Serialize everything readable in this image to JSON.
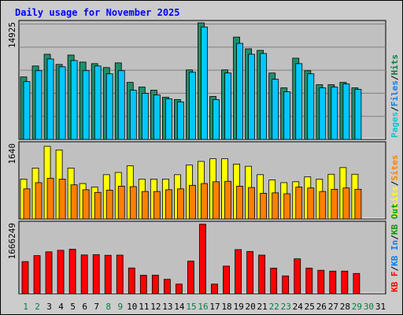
{
  "title": "Daily usage for November 2025",
  "colors": {
    "background": "#cccccc",
    "panel": "#c0c0c0",
    "pages": "#00cccc",
    "files": "#0080ff",
    "hits": "#008040",
    "pages_bar": "#00c8ff",
    "hits_bar": "#1f8f6a",
    "visits": "#ffff00",
    "sites": "#ff8000",
    "kbf": "#ff0000",
    "kbin": "#0080ff",
    "kbout": "#00a000",
    "title": "#0000ff",
    "weekend_label": "#008040"
  },
  "chart_data": [
    {
      "type": "bar",
      "panel": "top",
      "ymax_label": "14925",
      "ymax": 14925,
      "grid": true,
      "legend_position": "right-vertical",
      "legend": [
        {
          "label": "Pages",
          "color": "#00cccc"
        },
        {
          "sep": "/",
          "color": "#000000"
        },
        {
          "label": "Files",
          "color": "#0080ff"
        },
        {
          "sep": "/",
          "color": "#000000"
        },
        {
          "label": "Hits",
          "color": "#008040"
        }
      ],
      "series": [
        {
          "name": "Hits",
          "values": [
            8000,
            9400,
            10900,
            9600,
            10800,
            9900,
            9700,
            9200,
            9800,
            7300,
            6700,
            6300,
            5400,
            5100,
            8900,
            14925,
            5500,
            8900,
            13100,
            11600,
            11400,
            8500,
            6600,
            10400,
            8800,
            7000,
            7000,
            7300,
            6600
          ]
        },
        {
          "name": "Pages",
          "values": [
            7400,
            8800,
            10300,
            9300,
            10100,
            8800,
            9400,
            8400,
            8800,
            6300,
            5900,
            5700,
            5200,
            4800,
            8600,
            14400,
            5100,
            8500,
            12300,
            10900,
            11000,
            7700,
            6100,
            9700,
            8400,
            6600,
            6700,
            7100,
            6400
          ]
        }
      ]
    },
    {
      "type": "bar",
      "panel": "middle",
      "ymax_label": "1640",
      "ymax": 1640,
      "legend": [
        {
          "label": "Visits",
          "color": "#ffff00"
        },
        {
          "sep": "/",
          "color": "#000000"
        },
        {
          "label": "Sites",
          "color": "#ff8000"
        }
      ],
      "series": [
        {
          "name": "Visits",
          "values": [
            900,
            1150,
            1640,
            1560,
            1150,
            800,
            720,
            1000,
            1050,
            1200,
            900,
            900,
            900,
            1000,
            1220,
            1300,
            1360,
            1360,
            1240,
            1190,
            1000,
            880,
            820,
            840,
            950,
            900,
            1010,
            1160,
            1010
          ]
        },
        {
          "name": "Sites",
          "values": [
            680,
            820,
            920,
            900,
            770,
            660,
            600,
            650,
            740,
            730,
            620,
            620,
            660,
            680,
            760,
            800,
            840,
            850,
            740,
            710,
            580,
            590,
            570,
            720,
            700,
            620,
            670,
            700,
            670
          ]
        }
      ]
    },
    {
      "type": "bar",
      "panel": "bottom",
      "ymax_label": "1666249",
      "ymax": 1666249,
      "legend": [
        {
          "label": "KB F",
          "color": "#ff0000"
        },
        {
          "sep": "/",
          "color": "#000000"
        },
        {
          "label": "KB In",
          "color": "#0080ff"
        },
        {
          "sep": "/",
          "color": "#000000"
        },
        {
          "label": "KB Out",
          "color": "#00a000"
        }
      ],
      "series": [
        {
          "name": "KB F",
          "values": [
            770000,
            913000,
            1004000,
            1040000,
            1068000,
            929000,
            937000,
            921000,
            925000,
            617000,
            442000,
            446000,
            345000,
            231000,
            781000,
            1666249,
            231000,
            662000,
            1057000,
            1013000,
            925000,
            613000,
            427000,
            837000,
            613000,
            562000,
            542000,
            542000,
            486000
          ]
        }
      ]
    }
  ],
  "x_labels": [
    {
      "text": "1",
      "weekend": true
    },
    {
      "text": "2",
      "weekend": true
    },
    {
      "text": "3",
      "weekend": false
    },
    {
      "text": "4",
      "weekend": false
    },
    {
      "text": "5",
      "weekend": false
    },
    {
      "text": "6",
      "weekend": false
    },
    {
      "text": "7",
      "weekend": false
    },
    {
      "text": "8",
      "weekend": true
    },
    {
      "text": "9",
      "weekend": true
    },
    {
      "text": "10",
      "weekend": false
    },
    {
      "text": "11",
      "weekend": false
    },
    {
      "text": "12",
      "weekend": false
    },
    {
      "text": "13",
      "weekend": false
    },
    {
      "text": "14",
      "weekend": false
    },
    {
      "text": "15",
      "weekend": true
    },
    {
      "text": "16",
      "weekend": true
    },
    {
      "text": "17",
      "weekend": false
    },
    {
      "text": "18",
      "weekend": false
    },
    {
      "text": "19",
      "weekend": false
    },
    {
      "text": "20",
      "weekend": false
    },
    {
      "text": "21",
      "weekend": false
    },
    {
      "text": "22",
      "weekend": true
    },
    {
      "text": "23",
      "weekend": true
    },
    {
      "text": "24",
      "weekend": false
    },
    {
      "text": "25",
      "weekend": false
    },
    {
      "text": "26",
      "weekend": false
    },
    {
      "text": "27",
      "weekend": false
    },
    {
      "text": "28",
      "weekend": false
    },
    {
      "text": "29",
      "weekend": true
    },
    {
      "text": "30",
      "weekend": true
    },
    {
      "text": "31",
      "weekend": false
    }
  ]
}
